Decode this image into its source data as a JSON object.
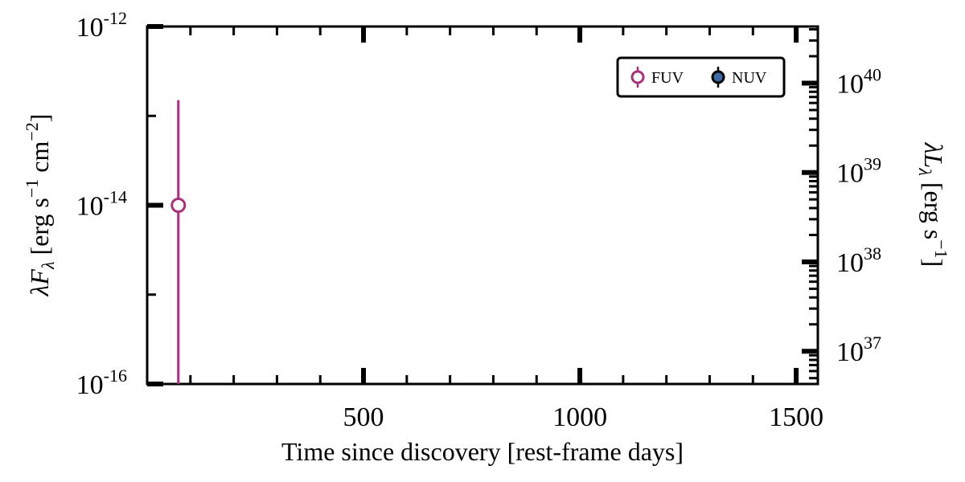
{
  "chart_data": {
    "type": "scatter",
    "xlabel": "Time since discovery [rest-frame days]",
    "ylabel": {
      "main": "λF",
      "sub": "λ",
      "rest": " [erg s",
      "exp1": "−1",
      "mid": " cm",
      "exp2": "−2",
      "end": "]"
    },
    "y2label": {
      "main": "λL",
      "sub": "λ",
      "rest": " [erg s",
      "exp": "−1",
      "end": "]"
    },
    "x_scale": "linear",
    "xlim": [
      0,
      1550
    ],
    "x_ticks": [
      500,
      1000,
      1500
    ],
    "x_tick_labels": [
      "500",
      "1000",
      "1500"
    ],
    "y_scale": "log",
    "ylim": [
      1e-16,
      1e-12
    ],
    "y_ticks": [
      {
        "value": 1e-16,
        "base": "10",
        "exp": "-16"
      },
      {
        "value": 1e-14,
        "base": "10",
        "exp": "-14"
      },
      {
        "value": 1e-12,
        "base": "10",
        "exp": "-12"
      }
    ],
    "y2_scale": "log",
    "y2_ticks": [
      {
        "value": 1e+37,
        "base": "10",
        "exp": "37"
      },
      {
        "value": 1e+38,
        "base": "10",
        "exp": "38"
      },
      {
        "value": 1e+39,
        "base": "10",
        "exp": "39"
      },
      {
        "value": 1e+40,
        "base": "10",
        "exp": "40"
      }
    ],
    "y2_lim": [
      4.3e+36,
      4.3e+40
    ],
    "grid": false,
    "legend": {
      "placement": "top-right",
      "columns": 2
    },
    "series": [
      {
        "name": "FUV",
        "color": "#a83279",
        "marker": "open-circle",
        "points": [
          {
            "x": 72,
            "y": 1e-14,
            "yerr_low": 1e-16,
            "yerr_high": 1.5e-13
          }
        ]
      },
      {
        "name": "NUV",
        "color": "#3c6aa5",
        "marker": "filled-circle",
        "points": []
      }
    ]
  }
}
